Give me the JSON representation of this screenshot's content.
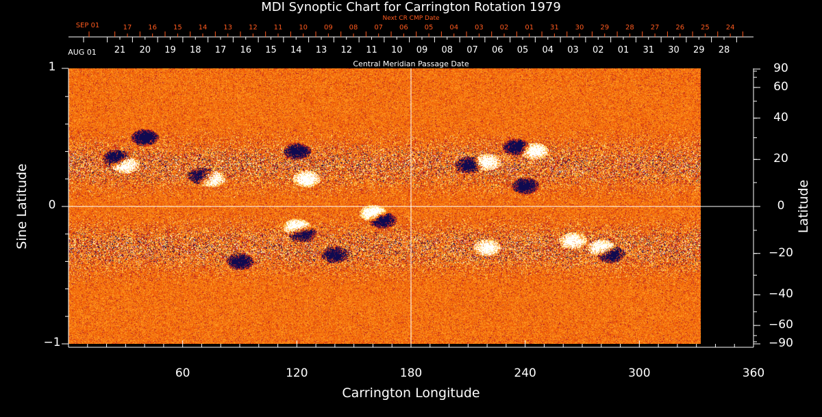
{
  "chart_data": {
    "type": "heatmap",
    "title": "MDI Synoptic Chart for Carrington Rotation 1979",
    "xlabel": "Carrington Longitude",
    "ylabel_left": "Sine Latitude",
    "ylabel_right": "Latitude",
    "xlim": [
      0,
      360
    ],
    "data_extent_longitude": [
      0,
      332
    ],
    "ylim": [
      -1,
      1
    ],
    "x_ticks": [
      "60",
      "120",
      "180",
      "240",
      "300",
      "360"
    ],
    "y_ticks_left": [
      "1",
      "0",
      "−1"
    ],
    "y_ticks_right": [
      "90",
      "60",
      "40",
      "20",
      "0",
      "−20",
      "−40",
      "−60",
      "−90"
    ],
    "top_axis_red": {
      "label": "Next CR CMP Date",
      "first": "SEP 01",
      "ticks": [
        "17",
        "16",
        "15",
        "14",
        "13",
        "12",
        "11",
        "10",
        "09",
        "08",
        "07",
        "06",
        "05",
        "04",
        "03",
        "02",
        "01",
        "31",
        "30",
        "29",
        "28",
        "27",
        "26",
        "25",
        "24"
      ]
    },
    "top_axis_white": {
      "label": "Central Meridian Passage Date",
      "first": "AUG 01",
      "ticks": [
        "21",
        "20",
        "19",
        "18",
        "17",
        "16",
        "15",
        "14",
        "13",
        "12",
        "11",
        "10",
        "09",
        "08",
        "07",
        "06",
        "05",
        "04",
        "03",
        "02",
        "01",
        "31",
        "30",
        "29",
        "28"
      ]
    },
    "colors": {
      "positive": "#ffffff",
      "negative": "#0a0a50",
      "background_field": "#ff5a10",
      "axis": "#ffffff",
      "red_axis": "#ff5a1e"
    },
    "grid": "crosshair at 0 latitude and 180 longitude"
  }
}
